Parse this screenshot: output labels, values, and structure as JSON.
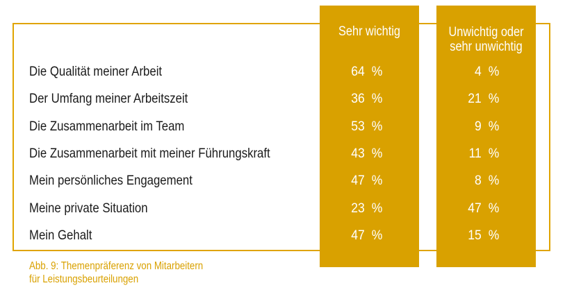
{
  "chart_data": {
    "type": "table",
    "columns": [
      "Sehr wichtig",
      "Unwichtig oder sehr unwichtig"
    ],
    "column_heads": [
      [
        "Sehr wichtig"
      ],
      [
        "Unwichtig oder",
        "sehr unwichtig"
      ]
    ],
    "unit": "%",
    "rows": [
      {
        "label": "Die Qualität meiner Arbeit",
        "values": [
          64,
          4
        ]
      },
      {
        "label": "Der Umfang meiner Arbeitszeit",
        "values": [
          36,
          21
        ]
      },
      {
        "label": "Die Zusammenarbeit im Team",
        "values": [
          53,
          9
        ]
      },
      {
        "label": "Die Zusammenarbeit mit meiner Führungskraft",
        "values": [
          43,
          11
        ]
      },
      {
        "label": "Mein persönliches Engagement",
        "values": [
          47,
          8
        ]
      },
      {
        "label": "Meine private Situation",
        "values": [
          23,
          47
        ]
      },
      {
        "label": "Mein Gehalt",
        "values": [
          47,
          15
        ]
      }
    ],
    "caption_lines": [
      "Abb. 9: Themenpräferenz von Mitarbeitern",
      "für Leistungsbeurteilungen"
    ]
  },
  "colors": {
    "accent": "#d9a100",
    "frame": "#e0a400",
    "text": "#1a1a1a",
    "column_text": "#ffffff"
  }
}
